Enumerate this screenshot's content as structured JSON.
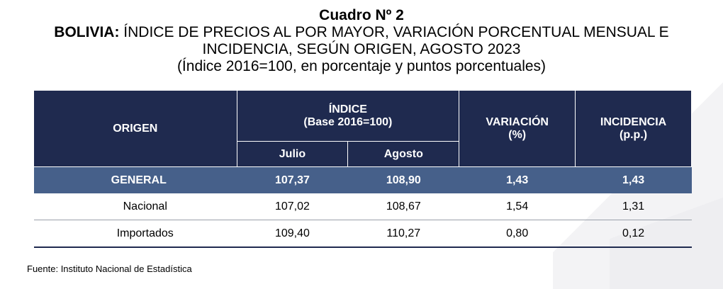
{
  "title": "Cuadro Nº 2",
  "subtitle_bold": "BOLIVIA:",
  "subtitle_rest": " ÍNDICE DE PRECIOS AL POR MAYOR, VARIACIÓN PORCENTUAL MENSUAL E INCIDENCIA, SEGÚN ORIGEN, AGOSTO 2023",
  "units": "(Índice 2016=100, en porcentaje y puntos porcentuales)",
  "table": {
    "headers": {
      "origen": "ORIGEN",
      "indice": "ÍNDICE",
      "indice_base": "(Base 2016=100)",
      "variacion": "VARIACIÓN",
      "variacion_unit": "(%)",
      "incidencia": "INCIDENCIA",
      "incidencia_unit": "(p.p.)",
      "julio": "Julio",
      "agosto": "Agosto"
    },
    "rows": [
      {
        "label": "GENERAL",
        "julio": "107,37",
        "agosto": "108,90",
        "variacion": "1,43",
        "incidencia": "1,43"
      },
      {
        "label": "Nacional",
        "julio": "107,02",
        "agosto": "108,67",
        "variacion": "1,54",
        "incidencia": "1,31"
      },
      {
        "label": "Importados",
        "julio": "109,40",
        "agosto": "110,27",
        "variacion": "0,80",
        "incidencia": "0,12"
      }
    ]
  },
  "source": "Fuente: Instituto Nacional de Estadística",
  "colors": {
    "header_bg": "#1f2a4f",
    "general_row_bg": "#46608a"
  }
}
